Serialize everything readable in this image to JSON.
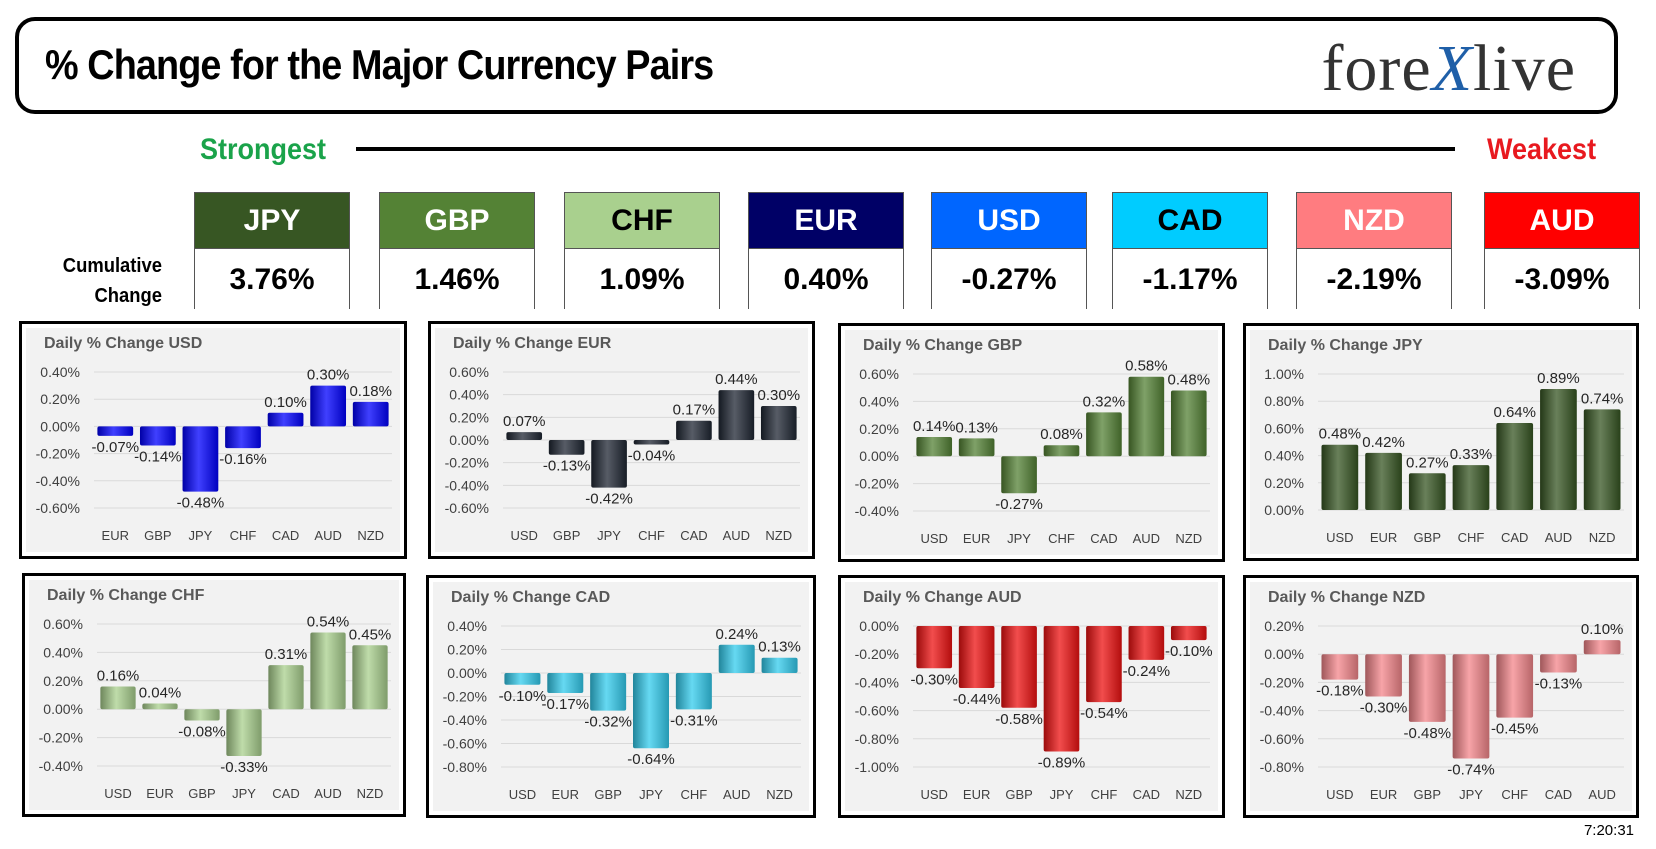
{
  "header": {
    "title": "% Change for the Major Currency Pairs",
    "logo_left": "fore",
    "logo_x": "X",
    "logo_right": "live"
  },
  "strength": {
    "strongest_label": "Strongest",
    "weakest_label": "Weakest",
    "cumulative_label_line1": "Cumulative",
    "cumulative_label_line2": "Change",
    "currencies": [
      {
        "code": "JPY",
        "value": "3.76%",
        "bg": "#375623",
        "fg": "#ffffff"
      },
      {
        "code": "GBP",
        "value": "1.46%",
        "bg": "#548235",
        "fg": "#ffffff"
      },
      {
        "code": "CHF",
        "value": "1.09%",
        "bg": "#a9d08e",
        "fg": "#000000"
      },
      {
        "code": "EUR",
        "value": "0.40%",
        "bg": "#000066",
        "fg": "#ffffff"
      },
      {
        "code": "USD",
        "value": "-0.27%",
        "bg": "#0066ff",
        "fg": "#ffffff"
      },
      {
        "code": "CAD",
        "value": "-1.17%",
        "bg": "#00ccff",
        "fg": "#000000"
      },
      {
        "code": "NZD",
        "value": "-2.19%",
        "bg": "#ff7c80",
        "fg": "#ffffff"
      },
      {
        "code": "AUD",
        "value": "-3.09%",
        "bg": "#ff0000",
        "fg": "#ffffff"
      }
    ]
  },
  "timestamp": "7:20:31",
  "chart_data": [
    {
      "type": "bar",
      "title": "Daily % Change USD",
      "color": "#0000ff",
      "categories": [
        "EUR",
        "GBP",
        "JPY",
        "CHF",
        "CAD",
        "AUD",
        "NZD"
      ],
      "values": [
        -0.07,
        -0.14,
        -0.48,
        -0.16,
        0.1,
        0.3,
        0.18
      ],
      "labels": [
        "-0.07%",
        "-0.14%",
        "-0.48%",
        "-0.16%",
        "0.10%",
        "0.30%",
        "0.18%"
      ],
      "yticks": [
        "0.40%",
        "0.20%",
        "0.00%",
        "-0.20%",
        "-0.40%",
        "-0.60%"
      ],
      "ylim": [
        -0.6,
        0.4
      ]
    },
    {
      "type": "bar",
      "title": "Daily % Change EUR",
      "color": "#1f2633",
      "categories": [
        "USD",
        "GBP",
        "JPY",
        "CHF",
        "CAD",
        "AUD",
        "NZD"
      ],
      "values": [
        0.07,
        -0.13,
        -0.42,
        -0.04,
        0.17,
        0.44,
        0.3
      ],
      "labels": [
        "0.07%",
        "-0.13%",
        "-0.42%",
        "-0.04%",
        "0.17%",
        "0.44%",
        "0.30%"
      ],
      "yticks": [
        "0.60%",
        "0.40%",
        "0.20%",
        "0.00%",
        "-0.20%",
        "-0.40%",
        "-0.60%"
      ],
      "ylim": [
        -0.6,
        0.6
      ]
    },
    {
      "type": "bar",
      "title": "Daily % Change GBP",
      "color": "#548235",
      "categories": [
        "USD",
        "EUR",
        "JPY",
        "CHF",
        "CAD",
        "AUD",
        "NZD"
      ],
      "values": [
        0.14,
        0.13,
        -0.27,
        0.08,
        0.32,
        0.58,
        0.48
      ],
      "labels": [
        "0.14%",
        "0.13%",
        "-0.27%",
        "0.08%",
        "0.32%",
        "0.58%",
        "0.48%"
      ],
      "yticks": [
        "0.60%",
        "0.40%",
        "0.20%",
        "0.00%",
        "-0.20%",
        "-0.40%"
      ],
      "ylim": [
        -0.4,
        0.6
      ]
    },
    {
      "type": "bar",
      "title": "Daily % Change JPY",
      "color": "#375623",
      "categories": [
        "USD",
        "EUR",
        "GBP",
        "CHF",
        "CAD",
        "AUD",
        "NZD"
      ],
      "values": [
        0.48,
        0.42,
        0.27,
        0.33,
        0.64,
        0.89,
        0.74
      ],
      "labels": [
        "0.48%",
        "0.42%",
        "0.27%",
        "0.33%",
        "0.64%",
        "0.89%",
        "0.74%"
      ],
      "yticks": [
        "1.00%",
        "0.80%",
        "0.60%",
        "0.40%",
        "0.20%",
        "0.00%"
      ],
      "ylim": [
        0,
        1.0
      ]
    },
    {
      "type": "bar",
      "title": "Daily % Change CHF",
      "color": "#a9d08e",
      "categories": [
        "USD",
        "EUR",
        "GBP",
        "JPY",
        "CAD",
        "AUD",
        "NZD"
      ],
      "values": [
        0.16,
        0.04,
        -0.08,
        -0.33,
        0.31,
        0.54,
        0.45
      ],
      "labels": [
        "0.16%",
        "0.04%",
        "-0.08%",
        "-0.33%",
        "0.31%",
        "0.54%",
        "0.45%"
      ],
      "yticks": [
        "0.60%",
        "0.40%",
        "0.20%",
        "0.00%",
        "-0.20%",
        "-0.40%"
      ],
      "ylim": [
        -0.4,
        0.6
      ]
    },
    {
      "type": "bar",
      "title": "Daily % Change CAD",
      "color": "#33ccee",
      "categories": [
        "USD",
        "EUR",
        "GBP",
        "JPY",
        "CHF",
        "AUD",
        "NZD"
      ],
      "values": [
        -0.1,
        -0.17,
        -0.32,
        -0.64,
        -0.31,
        0.24,
        0.13
      ],
      "labels": [
        "-0.10%",
        "-0.17%",
        "-0.32%",
        "-0.64%",
        "-0.31%",
        "0.24%",
        "0.13%"
      ],
      "yticks": [
        "0.40%",
        "0.20%",
        "0.00%",
        "-0.20%",
        "-0.40%",
        "-0.60%",
        "-0.80%"
      ],
      "ylim": [
        -0.8,
        0.4
      ]
    },
    {
      "type": "bar",
      "title": "Daily % Change AUD",
      "color": "#ee1111",
      "categories": [
        "USD",
        "EUR",
        "GBP",
        "JPY",
        "CHF",
        "CAD",
        "NZD"
      ],
      "values": [
        -0.3,
        -0.44,
        -0.58,
        -0.89,
        -0.54,
        -0.24,
        -0.1
      ],
      "labels": [
        "-0.30%",
        "-0.44%",
        "-0.58%",
        "-0.89%",
        "-0.54%",
        "-0.24%",
        "-0.10%"
      ],
      "yticks": [
        "0.00%",
        "-0.20%",
        "-0.40%",
        "-0.60%",
        "-0.80%",
        "-1.00%"
      ],
      "ylim": [
        -1.0,
        0
      ]
    },
    {
      "type": "bar",
      "title": "Daily % Change NZD",
      "color": "#f4868b",
      "categories": [
        "USD",
        "EUR",
        "GBP",
        "JPY",
        "CHF",
        "CAD",
        "AUD"
      ],
      "values": [
        -0.18,
        -0.3,
        -0.48,
        -0.74,
        -0.45,
        -0.13,
        0.1
      ],
      "labels": [
        "-0.18%",
        "-0.30%",
        "-0.48%",
        "-0.74%",
        "-0.45%",
        "-0.13%",
        "0.10%"
      ],
      "yticks": [
        "0.20%",
        "0.00%",
        "-0.20%",
        "-0.40%",
        "-0.60%",
        "-0.80%"
      ],
      "ylim": [
        -0.8,
        0.2
      ]
    }
  ]
}
